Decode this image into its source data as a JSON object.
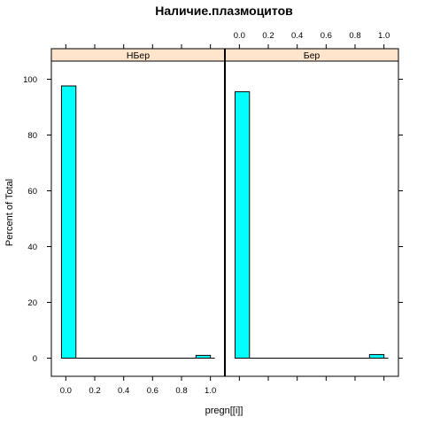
{
  "chart_data": {
    "type": "bar",
    "title": "Наличие.плазмоцитов",
    "xlabel": "pregn[[i]]",
    "ylabel": "Percent of Total",
    "xlim": [
      -0.1,
      1.1
    ],
    "ylim": [
      -6.5,
      106.5
    ],
    "x_ticks": [
      "0.0",
      "0.2",
      "0.4",
      "0.6",
      "0.8",
      "1.0"
    ],
    "y_ticks": [
      "0",
      "20",
      "40",
      "60",
      "80",
      "100"
    ],
    "x_tick_values": [
      0.0,
      0.2,
      0.4,
      0.6,
      0.8,
      1.0
    ],
    "y_tick_values": [
      0,
      20,
      40,
      60,
      80,
      100
    ],
    "bin_width": 0.1,
    "panels": [
      {
        "name": "НБер",
        "bins": [
          {
            "x_start": -0.03,
            "value": 97.6
          },
          {
            "x_start": 0.9,
            "value": 1.0
          }
        ]
      },
      {
        "name": "Бер",
        "bins": [
          {
            "x_start": -0.03,
            "value": 95.5
          },
          {
            "x_start": 0.9,
            "value": 1.3
          }
        ]
      }
    ],
    "colors": {
      "bar_fill": "#00ffff",
      "bar_stroke": "#000000",
      "strip_fill": "#ffe5cc"
    },
    "grid": false,
    "legend": "none"
  }
}
